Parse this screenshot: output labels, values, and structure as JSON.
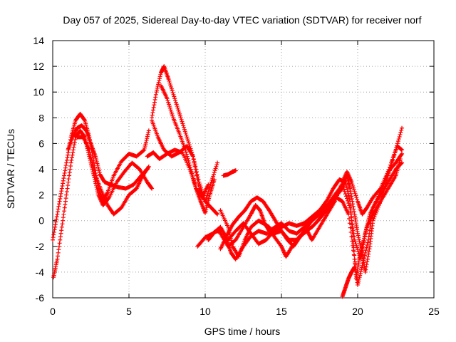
{
  "chart_data": {
    "type": "scatter",
    "title": "Day 057 of 2025, Sidereal Day-to-day VTEC variation (SDTVAR) for receiver norf",
    "xlabel": "GPS time / hours",
    "ylabel": "SDTVAR / TECUs",
    "xlim": [
      0,
      25
    ],
    "ylim": [
      -6,
      14
    ],
    "xticks": [
      "0",
      "5",
      "10",
      "15",
      "20",
      "25"
    ],
    "yticks": [
      "-6",
      "-4",
      "-2",
      "0",
      "2",
      "4",
      "6",
      "8",
      "10",
      "12",
      "14"
    ],
    "grid": true,
    "marker": "plus",
    "color": "#ff0000",
    "series": [
      {
        "points": [
          [
            0.0,
            -1.5
          ],
          [
            0.3,
            0.5
          ],
          [
            0.6,
            2.5
          ],
          [
            0.9,
            4.5
          ],
          [
            1.2,
            6.5
          ],
          [
            1.5,
            7.8
          ],
          [
            1.8,
            8.3
          ],
          [
            2.1,
            7.8
          ],
          [
            2.4,
            6.5
          ],
          [
            2.7,
            4.5
          ],
          [
            3.0,
            2.5
          ],
          [
            3.3,
            1.5
          ],
          [
            3.6,
            2.2
          ],
          [
            4.0,
            3.5
          ],
          [
            4.5,
            4.6
          ],
          [
            5.0,
            5.2
          ],
          [
            5.5,
            5.0
          ],
          [
            6.0,
            5.5
          ],
          [
            6.3,
            7.0
          ]
        ]
      },
      {
        "points": [
          [
            0.05,
            -4.4
          ],
          [
            0.3,
            -3.0
          ],
          [
            0.6,
            -0.5
          ],
          [
            0.9,
            2.0
          ],
          [
            1.2,
            4.5
          ],
          [
            1.5,
            6.5
          ],
          [
            1.8,
            7.0
          ],
          [
            2.1,
            6.5
          ],
          [
            2.4,
            5.0
          ],
          [
            2.7,
            3.5
          ],
          [
            3.0,
            2.0
          ],
          [
            3.3,
            1.2
          ],
          [
            3.7,
            1.8
          ],
          [
            4.2,
            3.0
          ],
          [
            4.7,
            3.8
          ],
          [
            5.2,
            4.5
          ],
          [
            5.7,
            4.0
          ],
          [
            6.2,
            3.0
          ],
          [
            6.5,
            2.5
          ]
        ]
      },
      {
        "points": [
          [
            1.0,
            5.5
          ],
          [
            1.3,
            6.5
          ],
          [
            1.6,
            7.2
          ],
          [
            1.9,
            7.4
          ],
          [
            2.2,
            7.0
          ],
          [
            2.5,
            6.0
          ],
          [
            2.8,
            5.0
          ],
          [
            3.1,
            3.6
          ],
          [
            3.4,
            3.0
          ],
          [
            3.8,
            2.8
          ],
          [
            4.3,
            2.6
          ],
          [
            4.8,
            2.5
          ],
          [
            5.3,
            2.8
          ],
          [
            5.8,
            3.5
          ],
          [
            6.2,
            4.0
          ]
        ]
      },
      {
        "points": [
          [
            1.6,
            6.5
          ],
          [
            2.0,
            6.5
          ],
          [
            2.4,
            5.5
          ],
          [
            2.8,
            3.5
          ],
          [
            3.2,
            2.3
          ],
          [
            3.6,
            1.2
          ],
          [
            4.0,
            0.5
          ],
          [
            4.5,
            1.0
          ],
          [
            5.0,
            2.0
          ],
          [
            5.5,
            2.5
          ],
          [
            5.9,
            3.5
          ],
          [
            6.3,
            4.2
          ]
        ]
      },
      {
        "points": [
          [
            6.5,
            8.0
          ],
          [
            6.8,
            10.0
          ],
          [
            7.1,
            11.5
          ],
          [
            7.3,
            12.0
          ],
          [
            7.6,
            11.0
          ],
          [
            8.0,
            9.5
          ],
          [
            8.4,
            8.0
          ],
          [
            8.8,
            6.5
          ],
          [
            9.2,
            5.0
          ],
          [
            9.6,
            3.0
          ],
          [
            10.0,
            1.5
          ],
          [
            10.4,
            1.0
          ],
          [
            10.8,
            0.5
          ]
        ]
      },
      {
        "points": [
          [
            6.5,
            7.8
          ],
          [
            6.9,
            6.5
          ],
          [
            7.3,
            5.5
          ],
          [
            7.8,
            5.0
          ],
          [
            8.3,
            5.3
          ],
          [
            8.8,
            5.8
          ],
          [
            9.2,
            5.0
          ],
          [
            9.6,
            2.5
          ],
          [
            10.0,
            1.5
          ],
          [
            10.4,
            3.0
          ],
          [
            10.8,
            4.5
          ]
        ]
      },
      {
        "points": [
          [
            7.1,
            10.5
          ],
          [
            7.5,
            9.5
          ],
          [
            7.9,
            8.0
          ],
          [
            8.3,
            6.8
          ],
          [
            8.7,
            5.5
          ],
          [
            9.1,
            3.8
          ],
          [
            9.4,
            2.5
          ],
          [
            9.7,
            1.5
          ],
          [
            10.0,
            0.6
          ],
          [
            10.3,
            2.0
          ],
          [
            10.6,
            3.2
          ]
        ]
      },
      {
        "points": [
          [
            6.2,
            5.0
          ],
          [
            6.6,
            5.3
          ],
          [
            7.0,
            4.8
          ],
          [
            7.5,
            5.2
          ],
          [
            8.0,
            5.5
          ],
          [
            8.5,
            5.3
          ],
          [
            9.0,
            4.0
          ],
          [
            9.4,
            2.5
          ],
          [
            9.8,
            1.8
          ],
          [
            10.2,
            2.8
          ]
        ]
      },
      {
        "points": [
          [
            9.5,
            -2.0
          ],
          [
            10.0,
            -1.3
          ],
          [
            10.5,
            -1.0
          ],
          [
            11.0,
            -0.5
          ],
          [
            11.4,
            -1.5
          ],
          [
            11.7,
            -2.5
          ],
          [
            12.0,
            -3.0
          ],
          [
            12.5,
            -2.0
          ],
          [
            13.0,
            -1.2
          ],
          [
            13.5,
            -0.8
          ],
          [
            14.0,
            -1.0
          ],
          [
            14.5,
            -1.0
          ],
          [
            15.0,
            -0.8
          ],
          [
            15.5,
            -1.5
          ],
          [
            16.0,
            -1.5
          ],
          [
            16.5,
            -0.8
          ],
          [
            17.0,
            0.0
          ],
          [
            17.5,
            0.5
          ],
          [
            18.0,
            1.0
          ],
          [
            18.5,
            1.8
          ],
          [
            19.0,
            2.5
          ],
          [
            19.3,
            3.5
          ],
          [
            19.5,
            2.5
          ],
          [
            19.8,
            0.5
          ],
          [
            20.0,
            -1.0
          ],
          [
            20.3,
            -2.5
          ],
          [
            20.5,
            -4.0
          ],
          [
            20.8,
            -2.0
          ],
          [
            21.0,
            0.0
          ],
          [
            21.5,
            1.5
          ],
          [
            22.0,
            3.5
          ],
          [
            22.5,
            5.5
          ],
          [
            22.9,
            7.2
          ]
        ]
      },
      {
        "points": [
          [
            11.0,
            0.8
          ],
          [
            11.5,
            -0.5
          ],
          [
            11.8,
            -2.0
          ],
          [
            12.2,
            -2.8
          ],
          [
            12.6,
            -1.5
          ],
          [
            13.0,
            -0.5
          ],
          [
            13.5,
            0.0
          ],
          [
            13.8,
            -0.2
          ],
          [
            14.2,
            -0.5
          ],
          [
            14.5,
            -1.2
          ],
          [
            15.0,
            -2.0
          ],
          [
            15.3,
            -2.8
          ],
          [
            15.7,
            -2.0
          ],
          [
            16.2,
            -1.2
          ],
          [
            16.7,
            -0.8
          ],
          [
            17.0,
            -1.5
          ],
          [
            17.5,
            -0.5
          ],
          [
            18.0,
            0.5
          ],
          [
            18.5,
            1.5
          ],
          [
            19.0,
            3.0
          ],
          [
            19.3,
            3.8
          ],
          [
            19.6,
            3.0
          ],
          [
            20.0,
            1.5
          ],
          [
            20.3,
            0.5
          ],
          [
            20.6,
            1.0
          ],
          [
            21.0,
            1.8
          ],
          [
            21.5,
            2.5
          ],
          [
            22.0,
            3.8
          ],
          [
            22.5,
            4.5
          ],
          [
            22.9,
            5.2
          ]
        ]
      },
      {
        "points": [
          [
            11.0,
            -1.0
          ],
          [
            11.5,
            -2.0
          ],
          [
            12.0,
            -1.5
          ],
          [
            12.5,
            -0.5
          ],
          [
            13.0,
            0.5
          ],
          [
            13.3,
            1.2
          ],
          [
            13.6,
            0.8
          ],
          [
            13.9,
            -0.2
          ],
          [
            14.2,
            -0.8
          ],
          [
            14.6,
            -0.5
          ],
          [
            15.0,
            -0.2
          ],
          [
            15.5,
            -0.8
          ],
          [
            16.0,
            -1.0
          ],
          [
            16.5,
            -0.5
          ],
          [
            17.0,
            0.0
          ],
          [
            17.5,
            0.8
          ],
          [
            18.0,
            1.2
          ],
          [
            18.5,
            2.0
          ],
          [
            19.0,
            2.8
          ],
          [
            19.5,
            1.0
          ],
          [
            19.8,
            -1.5
          ],
          [
            20.2,
            -3.0
          ],
          [
            20.5,
            -1.0
          ],
          [
            20.8,
            0.5
          ],
          [
            21.2,
            1.5
          ],
          [
            21.7,
            2.8
          ],
          [
            22.2,
            4.5
          ],
          [
            22.6,
            5.8
          ],
          [
            22.9,
            5.5
          ]
        ]
      },
      {
        "points": [
          [
            11.0,
            -2.2
          ],
          [
            11.4,
            -1.2
          ],
          [
            11.8,
            -0.3
          ],
          [
            12.2,
            0.3
          ],
          [
            12.6,
            0.8
          ],
          [
            13.0,
            1.5
          ],
          [
            13.4,
            1.8
          ],
          [
            13.8,
            1.5
          ],
          [
            14.2,
            0.8
          ],
          [
            14.6,
            0.0
          ],
          [
            15.0,
            -0.8
          ],
          [
            15.4,
            -1.5
          ],
          [
            15.8,
            -2.0
          ],
          [
            16.2,
            -1.3
          ],
          [
            16.6,
            -0.8
          ],
          [
            17.0,
            -0.5
          ],
          [
            17.4,
            0.0
          ],
          [
            17.8,
            0.6
          ],
          [
            18.2,
            1.0
          ],
          [
            18.6,
            1.8
          ],
          [
            19.0,
            1.5
          ],
          [
            19.4,
            0.5
          ],
          [
            19.8,
            -3.0
          ],
          [
            20.0,
            -5.0
          ],
          [
            20.3,
            -3.5
          ],
          [
            20.7,
            -1.5
          ],
          [
            21.0,
            1.0
          ],
          [
            21.5,
            2.0
          ],
          [
            22.0,
            3.0
          ],
          [
            22.5,
            4.0
          ],
          [
            22.9,
            4.5
          ]
        ]
      },
      {
        "points": [
          [
            11.0,
            -0.5
          ],
          [
            11.5,
            -1.5
          ],
          [
            12.0,
            -0.8
          ],
          [
            12.5,
            -0.2
          ],
          [
            13.0,
            -1.0
          ],
          [
            13.5,
            -1.8
          ],
          [
            14.0,
            -1.5
          ],
          [
            14.5,
            -0.8
          ],
          [
            15.0,
            -0.5
          ],
          [
            15.5,
            -0.2
          ],
          [
            16.0,
            -0.4
          ],
          [
            16.5,
            -0.2
          ],
          [
            17.0,
            0.3
          ],
          [
            17.5,
            0.8
          ],
          [
            18.0,
            1.6
          ],
          [
            18.4,
            2.5
          ],
          [
            18.8,
            3.2
          ],
          [
            19.2,
            3.0
          ],
          [
            19.5,
            1.5
          ],
          [
            19.7,
            -1.5
          ],
          [
            19.9,
            -4.5
          ],
          [
            20.1,
            -3.0
          ],
          [
            20.3,
            -2.0
          ],
          [
            20.6,
            -0.5
          ],
          [
            21.0,
            0.5
          ],
          [
            21.5,
            1.5
          ],
          [
            22.0,
            2.5
          ],
          [
            22.5,
            3.5
          ],
          [
            22.8,
            4.8
          ]
        ]
      },
      {
        "points": [
          [
            10.2,
            -1.5
          ],
          [
            10.4,
            -1.2
          ],
          [
            10.6,
            -0.9
          ],
          [
            10.8,
            -0.8
          ],
          [
            11.0,
            -0.9
          ]
        ]
      },
      {
        "points": [
          [
            11.2,
            3.5
          ],
          [
            11.5,
            3.6
          ],
          [
            11.8,
            3.8
          ],
          [
            12.0,
            3.9
          ]
        ]
      },
      {
        "points": [
          [
            19.0,
            -5.9
          ],
          [
            19.2,
            -5.2
          ],
          [
            19.4,
            -4.5
          ],
          [
            19.6,
            -4.0
          ],
          [
            19.8,
            -3.6
          ]
        ]
      }
    ]
  }
}
